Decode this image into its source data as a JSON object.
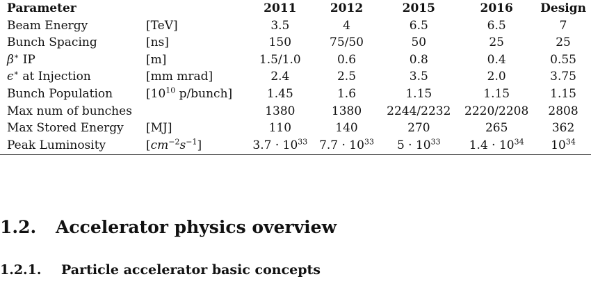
{
  "table": {
    "headers": [
      "Parameter",
      "",
      "2011",
      "2012",
      "2015",
      "2016",
      "Design"
    ],
    "rows": [
      {
        "param_html": "Beam Energy",
        "unit_html": "[TeV]",
        "values_html": [
          "3.5",
          "4",
          "6.5",
          "6.5",
          "7"
        ]
      },
      {
        "param_html": "Bunch Spacing",
        "unit_html": "[ns]",
        "values_html": [
          "150",
          "75/50",
          "50",
          "25",
          "25"
        ]
      },
      {
        "param_html": "<i class=\"mathit\">β</i><sup>∗</sup> IP",
        "unit_html": "[m]",
        "values_html": [
          "1.5/1.0",
          "0.6",
          "0.8",
          "0.4",
          "0.55"
        ]
      },
      {
        "param_html": "<i class=\"mathit\">ϵ</i><sup>∗</sup> at Injection",
        "unit_html": "[mm mrad]",
        "values_html": [
          "2.4",
          "2.5",
          "3.5",
          "2.0",
          "3.75"
        ]
      },
      {
        "param_html": "Bunch Population",
        "unit_html": "[10<sup>10</sup> p/bunch]",
        "values_html": [
          "1.45",
          "1.6",
          "1.15",
          "1.15",
          "1.15"
        ]
      },
      {
        "param_html": "Max num of bunches",
        "unit_html": "",
        "values_html": [
          "1380",
          "1380",
          "2244/2232",
          "2220/2208",
          "2808"
        ]
      },
      {
        "param_html": "Max Stored Energy",
        "unit_html": "[MJ]",
        "values_html": [
          "110",
          "140",
          "270",
          "265",
          "362"
        ]
      },
      {
        "param_html": "Peak Luminosity",
        "unit_html": "[<i class=\"mathit\">cm</i><sup>−2</sup><i class=\"mathit\">s</i><sup>−1</sup>]",
        "values_html": [
          "3.7 · 10<sup>33</sup>",
          "7.7 · 10<sup>33</sup>",
          "5 · 10<sup>33</sup>",
          "1.4 · 10<sup>34</sup>",
          "10<sup>34</sup>"
        ]
      }
    ]
  },
  "section": {
    "number": "1.2.",
    "title": "Accelerator physics overview"
  },
  "subsection": {
    "number": "1.2.1.",
    "title": "Particle accelerator basic concepts"
  }
}
